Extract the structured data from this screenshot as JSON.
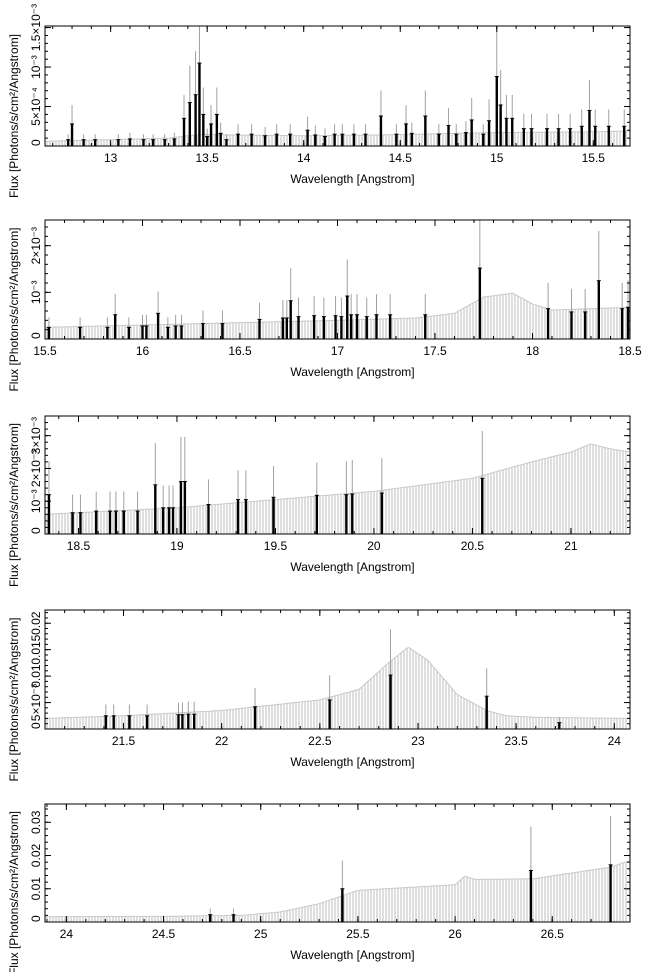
{
  "colors": {
    "background": "#ffffff",
    "data_line": "#000000",
    "model_band": "#bdbdbd",
    "axis": "#000000"
  },
  "chart_data": [
    {
      "type": "line",
      "panel": 1,
      "xlabel": "Wavelength [Angstrom]",
      "ylabel": "Flux [Photons/s/cm²/Angstrom]",
      "xlim": [
        12.66,
        15.69
      ],
      "ylim": [
        0,
        0.00152
      ],
      "xticks": [
        13,
        13.5,
        14,
        14.5,
        15,
        15.5
      ],
      "xtick_labels": [
        "13",
        "13.5",
        "14",
        "14.5",
        "15",
        "15.5"
      ],
      "yticks": [
        0,
        0.0005,
        0.001,
        0.0015
      ],
      "ytick_labels": [
        "0",
        "5×10⁻⁴",
        "10⁻³",
        "1.5×10⁻³"
      ],
      "model_x": [
        12.66,
        13.0,
        13.3,
        13.4,
        13.5,
        13.6,
        14.0,
        14.4,
        15.0,
        15.5,
        15.69
      ],
      "model_y": [
        6e-05,
        8e-05,
        0.0001,
        0.00013,
        0.00015,
        0.00014,
        0.00013,
        0.00014,
        0.00017,
        0.00018,
        0.00019
      ],
      "series": [
        {
          "x": [
            12.78,
            12.8,
            12.86,
            12.92,
            13.04,
            13.1,
            13.17,
            13.22,
            13.28,
            13.33,
            13.38,
            13.41,
            13.44,
            13.46,
            13.48,
            13.5,
            13.52,
            13.55,
            13.57,
            13.6,
            13.66,
            13.73,
            13.8,
            13.86,
            13.93,
            14.02,
            14.06,
            14.11,
            14.16,
            14.2,
            14.26,
            14.32,
            14.4,
            14.48,
            14.53,
            14.56,
            14.63,
            14.7,
            14.75,
            14.79,
            14.84,
            14.87,
            14.93,
            14.96,
            15.0,
            15.02,
            15.05,
            15.08,
            15.14,
            15.18,
            15.26,
            15.32,
            15.38,
            15.44,
            15.48,
            15.51,
            15.58,
            15.66
          ],
          "y": [
            8e-05,
            0.00028,
            8e-05,
            8e-05,
            8e-05,
            9e-05,
            8e-05,
            8e-05,
            8e-05,
            9e-05,
            0.00035,
            0.00055,
            0.00065,
            0.00105,
            0.0004,
            0.00012,
            0.00028,
            0.0004,
            0.00016,
            8e-05,
            0.00015,
            0.00015,
            0.00013,
            0.00015,
            0.00015,
            0.0002,
            0.00014,
            0.00012,
            0.00015,
            0.00015,
            0.00015,
            0.00015,
            0.00038,
            0.00015,
            0.00028,
            0.00016,
            0.00038,
            0.00015,
            0.00026,
            0.00015,
            0.00017,
            0.00033,
            0.00015,
            0.00032,
            0.00088,
            0.00052,
            0.00035,
            0.00035,
            0.00022,
            0.00022,
            0.00022,
            0.00022,
            0.00022,
            0.00025,
            0.00045,
            0.00025,
            0.00025,
            0.00025
          ]
        }
      ]
    },
    {
      "type": "line",
      "panel": 2,
      "xlabel": "Wavelength [Angstrom]",
      "ylabel": "Flux [Photons/s/cm²/Angstrom]",
      "xlim": [
        15.5,
        18.5
      ],
      "ylim": [
        0,
        0.00255
      ],
      "xticks": [
        15.5,
        16,
        16.5,
        17,
        17.5,
        18,
        18.5
      ],
      "xtick_labels": [
        "15.5",
        "16",
        "16.5",
        "17",
        "17.5",
        "18",
        "18.5"
      ],
      "yticks": [
        0,
        0.001,
        0.002
      ],
      "ytick_labels": [
        "0",
        "10⁻³",
        "2×10⁻³"
      ],
      "model_x": [
        15.5,
        16.0,
        16.5,
        17.0,
        17.4,
        17.6,
        17.75,
        17.9,
        18.0,
        18.1,
        18.3,
        18.5
      ],
      "model_y": [
        0.00025,
        0.0003,
        0.00035,
        0.0004,
        0.00045,
        0.00055,
        0.0009,
        0.00098,
        0.00075,
        0.00062,
        0.00065,
        0.00068
      ],
      "series": [
        {
          "x": [
            15.52,
            15.68,
            15.82,
            15.86,
            15.93,
            16.0,
            16.02,
            16.08,
            16.13,
            16.17,
            16.2,
            16.31,
            16.41,
            16.6,
            16.72,
            16.74,
            16.76,
            16.8,
            16.88,
            16.93,
            16.99,
            17.02,
            17.05,
            17.07,
            17.1,
            17.15,
            17.2,
            17.27,
            17.45,
            17.73,
            18.08,
            18.2,
            18.27,
            18.34,
            18.46,
            18.49
          ],
          "y": [
            0.00025,
            0.00025,
            0.00025,
            0.00052,
            0.00025,
            0.00028,
            0.00028,
            0.00055,
            0.00025,
            0.00028,
            0.00028,
            0.00033,
            0.00033,
            0.00042,
            0.00045,
            0.00045,
            0.00082,
            0.00048,
            0.0005,
            0.00048,
            0.0005,
            0.00048,
            0.00092,
            0.00052,
            0.00052,
            0.00048,
            0.00052,
            0.00052,
            0.00052,
            0.00152,
            0.00065,
            0.00058,
            0.00058,
            0.00125,
            0.00065,
            0.00068
          ]
        }
      ]
    },
    {
      "type": "line",
      "panel": 3,
      "xlabel": "Wavelength [Angstrom]",
      "ylabel": "Flux [Photons/s/cm²/Angstrom]",
      "xlim": [
        18.33,
        21.3
      ],
      "ylim": [
        0,
        0.0036
      ],
      "xticks": [
        18.5,
        19,
        19.5,
        20,
        20.5,
        21
      ],
      "xtick_labels": [
        "18.5",
        "19",
        "19.5",
        "20",
        "20.5",
        "21"
      ],
      "yticks": [
        0,
        0.001,
        0.002,
        0.003
      ],
      "ytick_labels": [
        "0",
        "10⁻³",
        "2×10⁻³",
        "3×10⁻³"
      ],
      "model_x": [
        18.33,
        18.6,
        19.0,
        19.5,
        20.0,
        20.5,
        20.8,
        21.0,
        21.1,
        21.2,
        21.3
      ],
      "model_y": [
        0.0006,
        0.00068,
        0.0008,
        0.00105,
        0.0013,
        0.0017,
        0.0022,
        0.0025,
        0.00275,
        0.0026,
        0.0025
      ],
      "series": [
        {
          "x": [
            18.35,
            18.47,
            18.51,
            18.59,
            18.66,
            18.69,
            18.73,
            18.8,
            18.89,
            18.93,
            18.96,
            18.98,
            19.02,
            19.04,
            19.16,
            19.31,
            19.35,
            19.49,
            19.71,
            19.86,
            19.89,
            20.04,
            20.55
          ],
          "y": [
            0.0012,
            0.00065,
            0.00065,
            0.0007,
            0.0007,
            0.0007,
            0.0007,
            0.0007,
            0.0015,
            0.0008,
            0.0008,
            0.0008,
            0.0016,
            0.0016,
            0.0009,
            0.00105,
            0.00105,
            0.00112,
            0.00118,
            0.0012,
            0.00122,
            0.00125,
            0.0017
          ]
        }
      ]
    },
    {
      "type": "line",
      "panel": 4,
      "xlabel": "Wavelength [Angstrom]",
      "ylabel": "Flux [Photons/s/cm²/Angstrom]",
      "xlim": [
        21.1,
        24.08
      ],
      "ylim": [
        0,
        0.0225
      ],
      "xticks": [
        21.5,
        22,
        22.5,
        23,
        23.5,
        24
      ],
      "xtick_labels": [
        "21.5",
        "22",
        "22.5",
        "23",
        "23.5",
        "24"
      ],
      "yticks": [
        0,
        0.005,
        0.01,
        0.015,
        0.02
      ],
      "ytick_labels": [
        "0",
        "5×10⁻³",
        "0.01",
        "0.015",
        "0.02"
      ],
      "model_x": [
        21.1,
        21.5,
        22.0,
        22.5,
        22.7,
        22.85,
        22.95,
        23.05,
        23.2,
        23.35,
        23.45,
        23.6,
        24.08
      ],
      "model_y": [
        0.002,
        0.0025,
        0.0035,
        0.0055,
        0.0075,
        0.0125,
        0.0155,
        0.013,
        0.0065,
        0.0035,
        0.0025,
        0.0022,
        0.002
      ],
      "series": [
        {
          "x": [
            21.41,
            21.45,
            21.53,
            21.62,
            21.78,
            21.8,
            21.83,
            21.86,
            22.17,
            22.55,
            22.86,
            23.35,
            23.72
          ],
          "y": [
            0.0025,
            0.0025,
            0.0025,
            0.0025,
            0.0027,
            0.0027,
            0.0028,
            0.0028,
            0.0042,
            0.0055,
            0.0102,
            0.0062,
            0.0012
          ]
        }
      ]
    },
    {
      "type": "line",
      "panel": 5,
      "xlabel": "Wavelength [Angstrom]",
      "ylabel": "Flux [Photons/s/cm²/Angstrom]",
      "xlim": [
        23.89,
        26.9
      ],
      "ylim": [
        0,
        0.0355
      ],
      "xticks": [
        24,
        24.5,
        25,
        25.5,
        26,
        26.5
      ],
      "xtick_labels": [
        "24",
        "24.5",
        "25",
        "25.5",
        "26",
        "26.5"
      ],
      "yticks": [
        0,
        0.01,
        0.02,
        0.03
      ],
      "ytick_labels": [
        "0",
        "0.01",
        "0.02",
        "0.03"
      ],
      "model_x": [
        23.89,
        24.5,
        24.9,
        25.1,
        25.3,
        25.5,
        25.7,
        26.0,
        26.05,
        26.1,
        26.4,
        26.8,
        26.9
      ],
      "model_y": [
        0.0016,
        0.0017,
        0.002,
        0.003,
        0.0055,
        0.0095,
        0.0102,
        0.0112,
        0.0138,
        0.0128,
        0.013,
        0.0165,
        0.0185
      ],
      "series": [
        {
          "x": [
            24.74,
            24.86,
            25.42,
            26.39,
            26.8
          ],
          "y": [
            0.0022,
            0.0022,
            0.01,
            0.0155,
            0.0172
          ]
        }
      ]
    }
  ]
}
